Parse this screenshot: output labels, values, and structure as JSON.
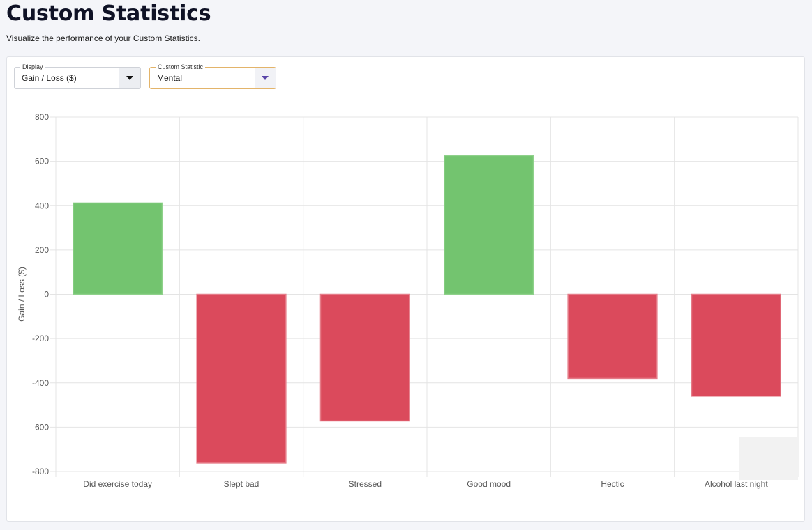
{
  "header": {
    "title": "Custom Statistics",
    "subtitle": "Visualize the performance of your Custom Statistics."
  },
  "filters": {
    "display": {
      "label": "Display",
      "value": "Gain / Loss ($)"
    },
    "custom_statistic": {
      "label": "Custom Statistic",
      "value": "Mental"
    }
  },
  "colors": {
    "gain": "#73c46f",
    "loss": "#db4a5c",
    "grid": "#e4e4e4"
  },
  "chart_data": {
    "type": "bar",
    "categories": [
      "Did exercise today",
      "Slept bad",
      "Stressed",
      "Good mood",
      "Hectic",
      "Alcohol last night"
    ],
    "values": [
      412,
      -762,
      -572,
      626,
      -380,
      -460
    ],
    "ylabel": "Gain / Loss ($)",
    "xlabel": "",
    "ylim": [
      -800,
      800
    ],
    "yticks": [
      800,
      600,
      400,
      200,
      0,
      -200,
      -400,
      -600,
      -800
    ],
    "grid": true
  }
}
